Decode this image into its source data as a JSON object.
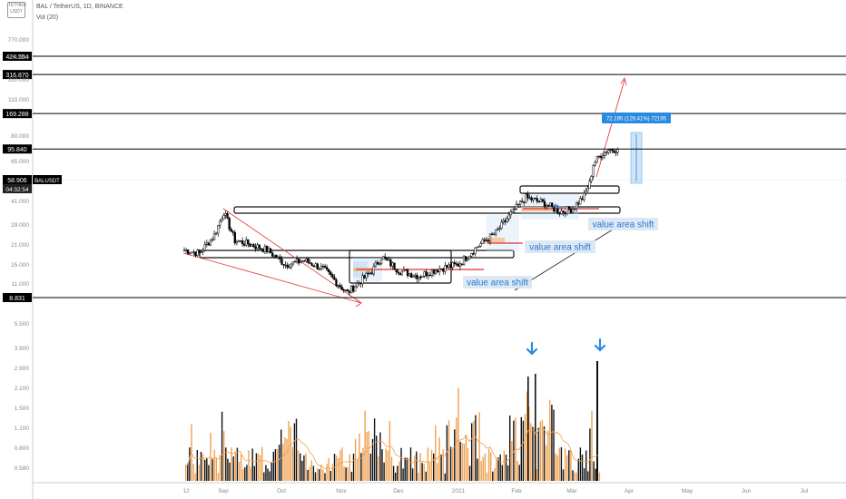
{
  "header": {
    "currency_top": "TETHER",
    "currency_bottom": "USDT",
    "title": "BAL / TetherUS, 1D, BINANCE",
    "volume_legend": "Vol (20)"
  },
  "colors": {
    "up_candle": "#000000",
    "down_candle": "#000000",
    "volume_up": "#f0a050",
    "volume_down": "#111111",
    "volume_ma": "#f0a050",
    "level_line": "#000000",
    "accent_blue": "#2a8ae0",
    "annotation_red": "#e03030",
    "label_bg": "#d8e6f3",
    "label_text": "#2a7ad0",
    "value_area_blue": "#bcd9f5",
    "value_area_orange": "#f4b87a"
  },
  "price_axis": {
    "ticks": [
      "770.000",
      "530.000",
      "330.000",
      "110.000",
      "80.000",
      "65.000",
      "41.000",
      "29.000",
      "21.000",
      "15.000",
      "11.000",
      "5.500"
    ],
    "volume_ticks": [
      "3.900",
      "2.900",
      "2.100",
      "1.500",
      "1.100",
      "0.800",
      "0.580"
    ],
    "current_price_label": "58.906",
    "current_symbol": "BALUSDT",
    "countdown": "04:32:54"
  },
  "time_axis": {
    "ticks": [
      "12",
      "Sep",
      "Oct",
      "Nov",
      "Dec",
      "2021",
      "Feb",
      "Mar",
      "Apr",
      "May",
      "Jun",
      "Jul"
    ]
  },
  "chart_data": {
    "type": "candlestick",
    "symbol": "BAL / TetherUS",
    "interval": "1D",
    "exchange": "BINANCE",
    "scale": "log",
    "x_range": [
      "2020-08-12",
      "2021-07-15"
    ],
    "horizontal_levels": [
      {
        "label": "424.554",
        "value": 424.554
      },
      {
        "label": "316.870",
        "value": 316.87
      },
      {
        "label": "169.288",
        "value": 169.288
      },
      {
        "label": "95.840",
        "value": 95.84
      },
      {
        "label": "8.831",
        "value": 8.831
      }
    ],
    "measure_label": "72.195 (129.41%) 72195",
    "annotations": [
      {
        "text": "value area shift"
      },
      {
        "text": "value area shift"
      },
      {
        "text": "value area shift"
      }
    ],
    "price_path": [
      {
        "date": "2020-08-12",
        "close": 19
      },
      {
        "date": "2020-08-20",
        "close": 18
      },
      {
        "date": "2020-08-28",
        "close": 24
      },
      {
        "date": "2020-09-02",
        "close": 35
      },
      {
        "date": "2020-09-08",
        "close": 22
      },
      {
        "date": "2020-09-15",
        "close": 21
      },
      {
        "date": "2020-09-25",
        "close": 19
      },
      {
        "date": "2020-10-05",
        "close": 15
      },
      {
        "date": "2020-10-15",
        "close": 16
      },
      {
        "date": "2020-10-25",
        "close": 14
      },
      {
        "date": "2020-11-02",
        "close": 11
      },
      {
        "date": "2020-11-07",
        "close": 9.5
      },
      {
        "date": "2020-11-12",
        "close": 11
      },
      {
        "date": "2020-11-20",
        "close": 13.5
      },
      {
        "date": "2020-11-25",
        "close": 17
      },
      {
        "date": "2020-12-05",
        "close": 13.5
      },
      {
        "date": "2020-12-15",
        "close": 12.5
      },
      {
        "date": "2020-12-25",
        "close": 14
      },
      {
        "date": "2021-01-05",
        "close": 15
      },
      {
        "date": "2021-01-15",
        "close": 20
      },
      {
        "date": "2021-01-25",
        "close": 25
      },
      {
        "date": "2021-02-03",
        "close": 35
      },
      {
        "date": "2021-02-10",
        "close": 44
      },
      {
        "date": "2021-02-20",
        "close": 40
      },
      {
        "date": "2021-02-28",
        "close": 35
      },
      {
        "date": "2021-03-07",
        "close": 37
      },
      {
        "date": "2021-03-13",
        "close": 45
      },
      {
        "date": "2021-03-16",
        "close": 55
      },
      {
        "date": "2021-03-18",
        "close": 75
      },
      {
        "date": "2021-03-22",
        "close": 88
      },
      {
        "date": "2021-03-26",
        "close": 95
      },
      {
        "date": "2021-03-31",
        "close": 96
      }
    ]
  }
}
